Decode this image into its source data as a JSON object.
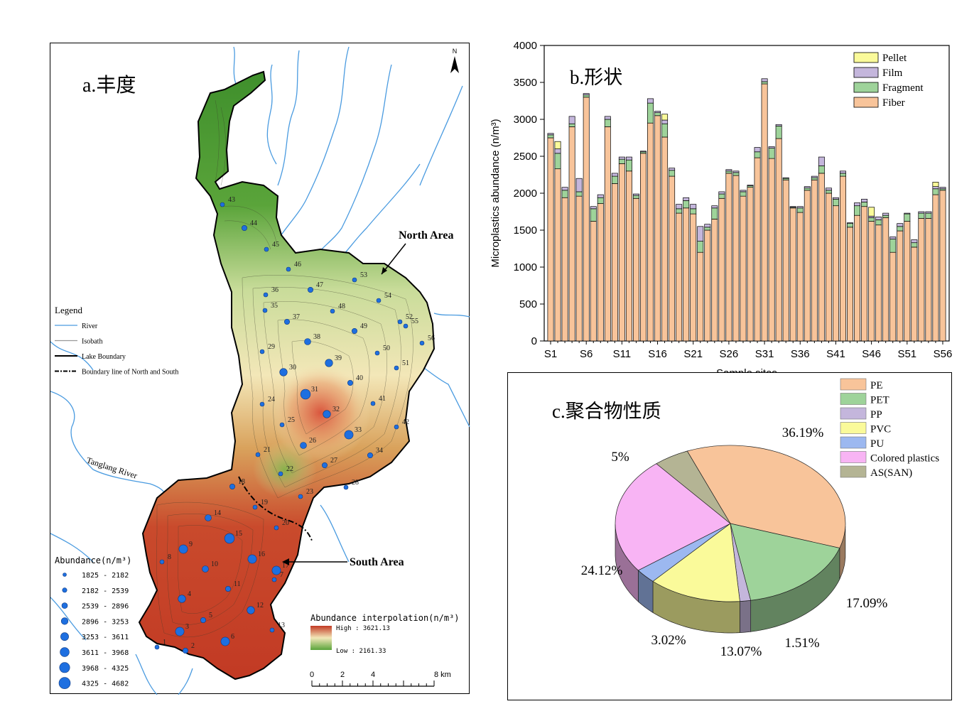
{
  "map": {
    "title": "a.丰度",
    "north_label": "N",
    "legend_title": "Legend",
    "legend_items": [
      {
        "label": "River",
        "color": "#4a9be0",
        "style": "solid"
      },
      {
        "label": "Isobath",
        "color": "#999999",
        "style": "solid"
      },
      {
        "label": "Lake Boundary",
        "color": "#000000",
        "style": "thick"
      },
      {
        "label": "Boundary line of North and South",
        "color": "#000000",
        "style": "dashdot"
      }
    ],
    "area_north": "North Area",
    "area_south": "South Area",
    "river_name": "Tanglang River",
    "abundance_title": "Abundance(n/m³)",
    "abundance_classes": [
      "1825 - 2182",
      "2182 - 2539",
      "2539 - 2896",
      "2896 - 3253",
      "3253 - 3611",
      "3611 - 3968",
      "3968 - 4325",
      "4325 - 4682"
    ],
    "interp_title": "Abundance interpolation(n/m³)",
    "interp_high": "High : 3621.13",
    "interp_low": "Low : 2161.33",
    "scale_labels": [
      "0",
      "2",
      "4",
      "8 km"
    ],
    "site_color": "#1e6fe0",
    "sites": [
      {
        "n": "1",
        "c": 1
      },
      {
        "n": "2",
        "c": 2
      },
      {
        "n": "3",
        "c": 5
      },
      {
        "n": "4",
        "c": 4
      },
      {
        "n": "5",
        "c": 2
      },
      {
        "n": "6",
        "c": 5
      },
      {
        "n": "7",
        "c": 1
      },
      {
        "n": "8",
        "c": 1
      },
      {
        "n": "9",
        "c": 5
      },
      {
        "n": "10",
        "c": 3
      },
      {
        "n": "11",
        "c": 2
      },
      {
        "n": "12",
        "c": 4
      },
      {
        "n": "13",
        "c": 1
      },
      {
        "n": "14",
        "c": 3
      },
      {
        "n": "15",
        "c": 6
      },
      {
        "n": "16",
        "c": 5
      },
      {
        "n": "17",
        "c": 5
      },
      {
        "n": "18",
        "c": 2
      },
      {
        "n": "19",
        "c": 1
      },
      {
        "n": "20",
        "c": 1
      },
      {
        "n": "21",
        "c": 1
      },
      {
        "n": "22",
        "c": 1
      },
      {
        "n": "23",
        "c": 1
      },
      {
        "n": "24",
        "c": 1
      },
      {
        "n": "25",
        "c": 1
      },
      {
        "n": "26",
        "c": 3
      },
      {
        "n": "27",
        "c": 2
      },
      {
        "n": "28",
        "c": 1
      },
      {
        "n": "29",
        "c": 1
      },
      {
        "n": "30",
        "c": 4
      },
      {
        "n": "31",
        "c": 6
      },
      {
        "n": "32",
        "c": 4
      },
      {
        "n": "33",
        "c": 5
      },
      {
        "n": "34",
        "c": 2
      },
      {
        "n": "35",
        "c": 1
      },
      {
        "n": "36",
        "c": 1
      },
      {
        "n": "37",
        "c": 2
      },
      {
        "n": "38",
        "c": 3
      },
      {
        "n": "39",
        "c": 4
      },
      {
        "n": "40",
        "c": 2
      },
      {
        "n": "41",
        "c": 1
      },
      {
        "n": "42",
        "c": 1
      },
      {
        "n": "43",
        "c": 1
      },
      {
        "n": "44",
        "c": 2
      },
      {
        "n": "45",
        "c": 1
      },
      {
        "n": "46",
        "c": 1
      },
      {
        "n": "47",
        "c": 2
      },
      {
        "n": "48",
        "c": 1
      },
      {
        "n": "49",
        "c": 2
      },
      {
        "n": "50",
        "c": 1
      },
      {
        "n": "51",
        "c": 1
      },
      {
        "n": "52",
        "c": 1
      },
      {
        "n": "53",
        "c": 1
      },
      {
        "n": "54",
        "c": 1
      },
      {
        "n": "55",
        "c": 1
      },
      {
        "n": "56",
        "c": 1
      }
    ]
  },
  "chart_data": [
    {
      "type": "bar",
      "stacked": true,
      "title": "b.形状",
      "ylabel": "Microplastics abundance (n/m³)",
      "xlabel": "Sample sites",
      "ylim": [
        0,
        4000
      ],
      "yticks": [
        0,
        500,
        1000,
        1500,
        2000,
        2500,
        3000,
        3500,
        4000
      ],
      "xtick_labels": [
        "S1",
        "S6",
        "S11",
        "S16",
        "S21",
        "S26",
        "S31",
        "S36",
        "S41",
        "S46",
        "S51",
        "S56"
      ],
      "categories": [
        "S1",
        "S2",
        "S3",
        "S4",
        "S5",
        "S6",
        "S7",
        "S8",
        "S9",
        "S10",
        "S11",
        "S12",
        "S13",
        "S14",
        "S15",
        "S16",
        "S17",
        "S18",
        "S19",
        "S20",
        "S21",
        "S22",
        "S23",
        "S24",
        "S25",
        "S26",
        "S27",
        "S28",
        "S29",
        "S30",
        "S31",
        "S32",
        "S33",
        "S34",
        "S35",
        "S36",
        "S37",
        "S38",
        "S39",
        "S40",
        "S41",
        "S42",
        "S43",
        "S44",
        "S45",
        "S46",
        "S47",
        "S48",
        "S49",
        "S50",
        "S51",
        "S52",
        "S53",
        "S54",
        "S55",
        "S56"
      ],
      "series": [
        {
          "name": "Fiber",
          "color": "#f8c49a",
          "values": [
            2750,
            2330,
            1940,
            2900,
            1960,
            3300,
            1620,
            1860,
            2900,
            2130,
            2400,
            2300,
            1930,
            2540,
            2950,
            3050,
            2760,
            2230,
            1730,
            1800,
            1720,
            1200,
            1500,
            1650,
            1930,
            2270,
            2240,
            1960,
            2080,
            2480,
            3480,
            2470,
            2740,
            2180,
            1800,
            1740,
            2040,
            2180,
            2270,
            2000,
            1830,
            2230,
            1540,
            1700,
            1820,
            1620,
            1570,
            1670,
            1200,
            1490,
            1620,
            1270,
            1660,
            1660,
            1980,
            2040
          ]
        },
        {
          "name": "Fragment",
          "color": "#9ed39a",
          "values": [
            40,
            210,
            100,
            40,
            60,
            30,
            170,
            80,
            100,
            100,
            60,
            150,
            40,
            20,
            270,
            40,
            180,
            80,
            60,
            100,
            70,
            150,
            40,
            150,
            60,
            30,
            40,
            60,
            20,
            80,
            30,
            140,
            170,
            20,
            10,
            60,
            30,
            30,
            100,
            40,
            90,
            40,
            50,
            130,
            60,
            50,
            70,
            30,
            180,
            60,
            100,
            60,
            70,
            70,
            80,
            20
          ]
        },
        {
          "name": "Film",
          "color": "#c4b6dc",
          "values": [
            20,
            60,
            40,
            100,
            180,
            20,
            30,
            40,
            40,
            40,
            30,
            40,
            20,
            10,
            60,
            20,
            50,
            30,
            60,
            40,
            60,
            200,
            40,
            30,
            30,
            20,
            20,
            20,
            10,
            60,
            40,
            20,
            20,
            10,
            10,
            20,
            20,
            20,
            120,
            30,
            20,
            30,
            10,
            40,
            40,
            20,
            40,
            30,
            30,
            40,
            10,
            40,
            20,
            20,
            30,
            20
          ]
        },
        {
          "name": "Pellet",
          "color": "#fafa9a",
          "values": [
            0,
            100,
            0,
            0,
            0,
            0,
            0,
            0,
            0,
            0,
            0,
            0,
            0,
            0,
            0,
            0,
            80,
            0,
            0,
            0,
            0,
            0,
            0,
            0,
            0,
            0,
            0,
            0,
            0,
            0,
            0,
            0,
            0,
            0,
            0,
            0,
            0,
            0,
            0,
            0,
            0,
            0,
            0,
            0,
            0,
            120,
            0,
            0,
            0,
            0,
            0,
            0,
            0,
            0,
            60,
            0
          ]
        }
      ],
      "legend_position": "top-right"
    },
    {
      "type": "pie",
      "title": "c.聚合物性质",
      "categories": [
        "PE",
        "PET",
        "PP",
        "PVC",
        "PU",
        "Colored plastics",
        "AS(SAN)"
      ],
      "values": [
        36.19,
        17.09,
        1.51,
        13.07,
        3.02,
        24.12,
        5
      ],
      "value_labels": [
        "36.19%",
        "17.09%",
        "1.51%",
        "13.07%",
        "3.02%",
        "24.12%",
        "5%"
      ],
      "colors": [
        "#f8c49a",
        "#9ed39a",
        "#c4b6dc",
        "#fafa9a",
        "#9cb8f0",
        "#f8b4f4",
        "#b4b494"
      ],
      "legend_position": "top-right"
    }
  ]
}
